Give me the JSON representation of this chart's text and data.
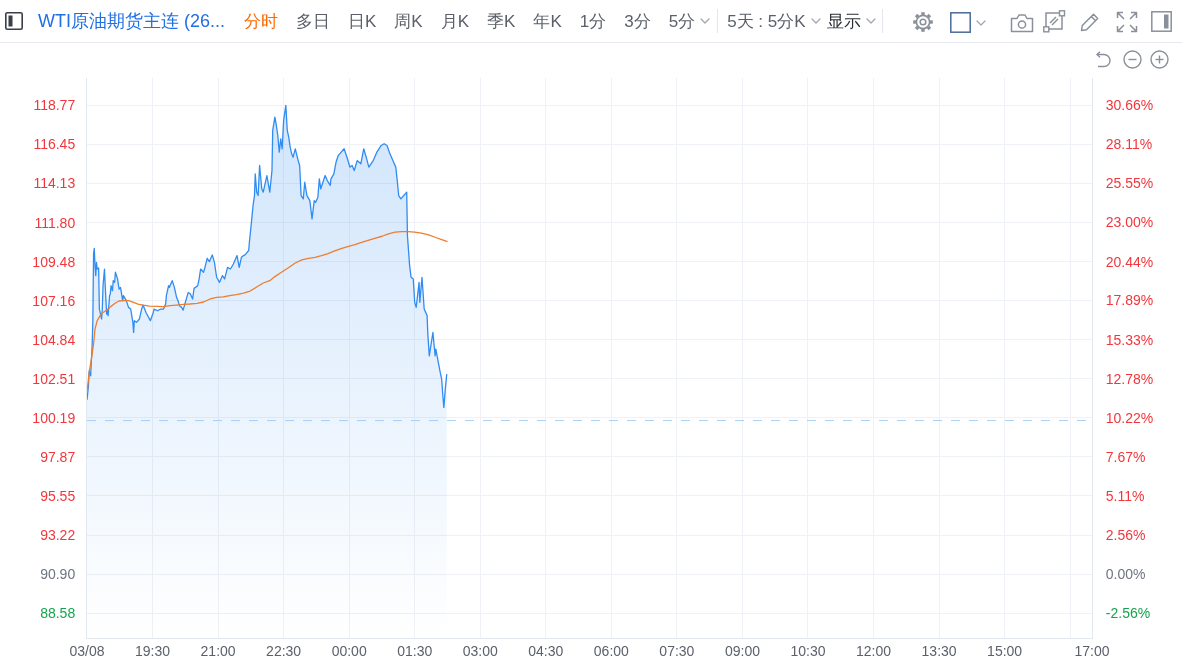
{
  "chart_data": {
    "type": "area",
    "title": "WTI原油期货主连 (26...",
    "annotations": [
      "分时",
      "多日",
      "日K",
      "周K",
      "月K",
      "季K",
      "年K",
      "1分",
      "3分",
      "5分",
      "5天 : 5分K",
      "显示"
    ],
    "xlim": [
      "--03-07T18:00",
      "--03-08T17:00"
    ],
    "xticks": [
      {
        "value": "--03-07T18:00",
        "label": "03/08"
      },
      {
        "value": "--03-07T19:30",
        "label": "19:30"
      },
      {
        "value": "--03-07T21:00",
        "label": "21:00"
      },
      {
        "value": "--03-07T22:30",
        "label": "22:30"
      },
      {
        "value": "--03-08T00:00",
        "label": "00:00"
      },
      {
        "value": "--03-08T01:30",
        "label": "01:30"
      },
      {
        "value": "--03-08T03:00",
        "label": "03:00"
      },
      {
        "value": "--03-08T04:30",
        "label": "04:30"
      },
      {
        "value": "--03-08T06:00",
        "label": "06:00"
      },
      {
        "value": "--03-08T07:30",
        "label": "07:30"
      },
      {
        "value": "--03-08T09:00",
        "label": "09:00"
      },
      {
        "value": "--03-08T10:30",
        "label": "10:30"
      },
      {
        "value": "--03-08T12:00",
        "label": "12:00"
      },
      {
        "value": "--03-08T13:30",
        "label": "13:30"
      },
      {
        "value": "--03-08T15:00",
        "label": "15:00"
      },
      {
        "value": "--03-08T16:30",
        "label": null
      },
      {
        "value": "--03-08T17:00",
        "label": "17:00"
      }
    ],
    "ylim": [
      87.1,
      120.4
    ],
    "yticks": [
      88.58,
      {
        "value": 90.9,
        "label": "90.90"
      },
      93.22,
      95.55,
      97.87,
      100.19,
      102.51,
      104.84,
      107.16,
      109.48,
      {
        "value": 111.8,
        "label": "111.80"
      },
      114.13,
      116.45,
      118.77
    ],
    "y2lim": [
      -4.18,
      32.45
    ],
    "y2ticks": [
      {
        "value": -2.56,
        "label": "-2.56%"
      },
      {
        "value": 0,
        "label": "0.00%"
      },
      {
        "value": 2.56,
        "label": "2.56%"
      },
      {
        "value": 5.11,
        "label": "5.11%"
      },
      {
        "value": 7.67,
        "label": "7.67%"
      },
      {
        "value": 10.22,
        "label": "10.22%"
      },
      {
        "value": 12.78,
        "label": "12.78%"
      },
      {
        "value": 15.33,
        "label": "15.33%"
      },
      {
        "value": 17.89,
        "label": "17.89%"
      },
      {
        "value": 20.44,
        "label": "20.44%"
      },
      {
        "value": 23,
        "label": "23.00%"
      },
      {
        "value": 25.55,
        "label": "25.55%"
      },
      {
        "value": 28.11,
        "label": "28.11%"
      },
      {
        "value": 30.66,
        "label": "30.66%"
      }
    ],
    "grid": true,
    "ref_lines": [
      {
        "axis": "y",
        "value": 100.03,
        "color": "#a9cff7",
        "line_style": "dashed"
      }
    ],
    "series": [
      {
        "color": "#318cf2",
        "x": [
          "--03-07T18:00",
          "--03-07T18:02",
          "--03-07T18:03",
          "--03-07T18:05",
          "--03-07T18:06",
          "--03-07T18:07",
          "--03-07T18:08",
          "--03-07T18:09",
          "--03-07T18:10",
          "--03-07T18:11",
          "--03-07T18:12",
          "--03-07T18:13",
          "--03-07T18:14",
          "--03-07T18:16",
          "--03-07T18:17",
          "--03-07T18:18",
          "--03-07T18:20",
          "--03-07T18:21",
          "--03-07T18:22",
          "--03-07T18:24",
          "--03-07T18:25",
          "--03-07T18:27",
          "--03-07T18:28",
          "--03-07T18:29",
          "--03-07T18:31",
          "--03-07T18:32",
          "--03-07T18:33",
          "--03-07T18:35",
          "--03-07T18:36",
          "--03-07T18:38",
          "--03-07T18:39",
          "--03-07T18:42",
          "--03-07T18:44",
          "--03-07T18:46",
          "--03-07T18:49",
          "--03-07T18:50",
          "--03-07T18:54",
          "--03-07T18:57",
          "--03-07T19:00",
          "--03-07T19:03",
          "--03-07T19:04",
          "--03-07T19:05",
          "--03-07T19:08",
          "--03-07T19:12",
          "--03-07T19:15",
          "--03-07T19:17",
          "--03-07T19:21",
          "--03-07T19:27",
          "--03-07T19:31",
          "--03-07T19:32",
          "--03-07T19:37",
          "--03-07T19:41",
          "--03-07T19:45",
          "--03-07T19:48",
          "--03-07T19:49",
          "--03-07T19:52",
          "--03-07T19:53",
          "--03-07T19:57",
          "--03-07T20:00",
          "--03-07T20:03",
          "--03-07T20:05",
          "--03-07T20:07",
          "--03-07T20:10",
          "--03-07T20:12",
          "--03-07T20:15",
          "--03-07T20:19",
          "--03-07T20:22",
          "--03-07T20:25",
          "--03-07T20:27",
          "--03-07T20:32",
          "--03-07T20:34",
          "--03-07T20:36",
          "--03-07T20:40",
          "--03-07T20:42",
          "--03-07T20:45",
          "--03-07T20:48",
          "--03-07T20:52",
          "--03-07T20:55",
          "--03-07T20:58",
          "--03-07T21:02",
          "--03-07T21:06",
          "--03-07T21:09",
          "--03-07T21:13",
          "--03-07T21:17",
          "--03-07T21:21",
          "--03-07T21:26",
          "--03-07T21:29",
          "--03-07T21:32",
          "--03-07T21:35",
          "--03-07T21:37",
          "--03-07T21:42",
          "--03-07T21:43",
          "--03-07T21:46",
          "--03-07T21:48",
          "--03-07T21:50",
          "--03-07T21:51",
          "--03-07T21:53",
          "--03-07T21:55",
          "--03-07T21:57",
          "--03-07T22:00",
          "--03-07T22:02",
          "--03-07T22:07",
          "--03-07T22:11",
          "--03-07T22:14",
          "--03-07T22:15",
          "--03-07T22:18",
          "--03-07T22:20",
          "--03-07T22:22",
          "--03-07T22:24",
          "--03-07T22:26",
          "--03-07T22:28",
          "--03-07T22:30",
          "--03-07T22:33",
          "--03-07T22:35",
          "--03-07T22:37",
          "--03-07T22:39",
          "--03-07T22:41",
          "--03-07T22:43",
          "--03-07T22:46",
          "--03-07T22:50",
          "--03-07T22:52",
          "--03-07T22:54",
          "--03-07T22:57",
          "--03-07T22:59",
          "--03-07T23:02",
          "--03-07T23:06",
          "--03-07T23:09",
          "--03-07T23:12",
          "--03-07T23:14",
          "--03-07T23:17",
          "--03-07T23:19",
          "--03-07T23:21",
          "--03-07T23:27",
          "--03-07T23:30",
          "--03-07T23:34",
          "--03-07T23:35",
          "--03-07T23:39",
          "--03-07T23:42",
          "--03-07T23:45",
          "--03-07T23:47",
          "--03-07T23:53",
          "--03-07T23:57",
          "--03-08T00:01",
          "--03-08T00:04",
          "--03-08T00:07",
          "--03-08T00:11",
          "--03-08T00:16",
          "--03-08T00:20",
          "--03-08T00:24",
          "--03-08T00:27",
          "--03-08T00:33",
          "--03-08T00:38",
          "--03-08T00:44",
          "--03-08T00:48",
          "--03-08T00:52",
          "--03-08T00:56",
          "--03-08T01:00",
          "--03-08T01:04",
          "--03-08T01:06",
          "--03-08T01:08",
          "--03-08T01:11",
          "--03-08T01:15",
          "--03-08T01:19",
          "--03-08T01:20",
          "--03-08T01:23",
          "--03-08T01:25",
          "--03-08T01:28",
          "--03-08T01:30",
          "--03-08T01:32",
          "--03-08T01:36",
          "--03-08T01:37",
          "--03-08T01:40",
          "--03-08T01:43",
          "--03-08T01:47",
          "--03-08T01:48",
          "--03-08T01:50",
          "--03-08T01:55",
          "--03-08T01:58",
          "--03-08T01:59",
          "--03-08T02:02",
          "--03-08T02:05",
          "--03-08T02:07",
          "--03-08T02:09",
          "--03-08T02:10",
          "--03-08T02:12",
          "--03-08T02:14"
        ],
        "values": [
          101.26,
          102.1,
          102.99,
          102.69,
          103.58,
          104.48,
          105.87,
          109.94,
          110.27,
          109.24,
          108.65,
          109.44,
          109.04,
          109.1,
          106.66,
          106.46,
          106.07,
          106.66,
          108.05,
          109.04,
          108.05,
          106.36,
          106.66,
          106.27,
          107.46,
          107.56,
          108.05,
          107.75,
          108.35,
          108.25,
          108.85,
          108.45,
          107.85,
          107.95,
          107.16,
          107.46,
          107.16,
          106.76,
          106.66,
          105.87,
          105.27,
          105.97,
          105.87,
          106.07,
          106.66,
          106.9,
          106.46,
          105.97,
          106.46,
          106.66,
          106.56,
          106.66,
          106.66,
          106.96,
          107.46,
          108.05,
          107.95,
          108.35,
          107.95,
          107.36,
          107.16,
          106.86,
          106.76,
          106.6,
          107.06,
          107.65,
          107.56,
          107.26,
          107.89,
          108.05,
          108.45,
          109.04,
          108.85,
          109.14,
          109.68,
          109.48,
          109.88,
          109.44,
          108.55,
          108.25,
          108.65,
          108.45,
          109.14,
          109.04,
          109.34,
          109.84,
          109.14,
          109.74,
          109.84,
          109.88,
          110.14,
          110.63,
          111.92,
          112.82,
          113.41,
          114.7,
          113.61,
          113.41,
          115.2,
          113.81,
          113.61,
          114.6,
          113.61,
          114.9,
          117.28,
          118.07,
          117.58,
          116.98,
          115.99,
          116.78,
          116.19,
          117.88,
          118.77,
          117.28,
          116.88,
          116.29,
          115.89,
          115.69,
          116.19,
          115.49,
          115.2,
          113.41,
          113.21,
          114.2,
          113.41,
          113.11,
          112.02,
          113.11,
          113.01,
          113.31,
          114.4,
          113.81,
          114.6,
          114.3,
          114.01,
          114.4,
          114.7,
          115.4,
          115.79,
          115.89,
          116.19,
          115.69,
          115.1,
          115.2,
          114.9,
          115.49,
          115.3,
          116.19,
          115.59,
          115.1,
          115.49,
          115.99,
          116.39,
          116.49,
          116.39,
          115.89,
          115.49,
          115.1,
          114.3,
          113.41,
          113.21,
          113.41,
          113.61,
          111.03,
          109.24,
          108.55,
          108.45,
          107.06,
          106.76,
          108.25,
          107.06,
          108.55,
          106.66,
          106.27,
          105.17,
          103.88,
          105.27,
          103.88,
          104.28,
          103.58,
          102.89,
          102.49,
          101.3,
          100.81,
          101.9,
          102.79
        ]
      },
      {
        "type": "line",
        "color": "#ef7d2c",
        "x": [
          "--03-07T18:00",
          "--03-07T18:03",
          "--03-07T18:06",
          "--03-07T18:09",
          "--03-07T18:11",
          "--03-07T18:14",
          "--03-07T18:18",
          "--03-07T18:22",
          "--03-07T18:28",
          "--03-07T18:33",
          "--03-07T18:39",
          "--03-07T18:44",
          "--03-07T18:50",
          "--03-07T18:57",
          "--03-07T19:04",
          "--03-07T19:10",
          "--03-07T19:17",
          "--03-07T19:26",
          "--03-07T19:36",
          "--03-07T19:45",
          "--03-07T19:54",
          "--03-07T20:03",
          "--03-07T20:12",
          "--03-07T20:21",
          "--03-07T20:31",
          "--03-07T20:40",
          "--03-07T20:49",
          "--03-07T20:58",
          "--03-07T21:07",
          "--03-07T21:16",
          "--03-07T21:25",
          "--03-07T21:35",
          "--03-07T21:44",
          "--03-07T21:53",
          "--03-07T22:02",
          "--03-07T22:11",
          "--03-07T22:18",
          "--03-07T22:27",
          "--03-07T22:36",
          "--03-07T22:46",
          "--03-07T22:55",
          "--03-07T23:04",
          "--03-07T23:13",
          "--03-07T23:22",
          "--03-07T23:31",
          "--03-07T23:40",
          "--03-07T23:50",
          "--03-07T23:59",
          "--03-08T00:08",
          "--03-08T00:17",
          "--03-08T00:26",
          "--03-08T00:35",
          "--03-08T00:45",
          "--03-08T00:54",
          "--03-08T01:03",
          "--03-08T01:12",
          "--03-08T01:21",
          "--03-08T01:30",
          "--03-08T01:39",
          "--03-08T01:49",
          "--03-08T01:58",
          "--03-08T02:07",
          "--03-08T02:15"
        ],
        "values": [
          101.7,
          102.89,
          103.68,
          104.58,
          105.47,
          105.97,
          106.27,
          106.46,
          106.62,
          106.82,
          107.02,
          107.14,
          107.16,
          107.16,
          107.06,
          106.96,
          106.9,
          106.84,
          106.82,
          106.8,
          106.86,
          106.9,
          106.94,
          106.96,
          107.0,
          107.08,
          107.26,
          107.36,
          107.38,
          107.46,
          107.52,
          107.61,
          107.73,
          107.97,
          108.21,
          108.35,
          108.59,
          108.85,
          109.1,
          109.4,
          109.58,
          109.68,
          109.74,
          109.84,
          109.96,
          110.12,
          110.27,
          110.39,
          110.49,
          110.63,
          110.75,
          110.87,
          110.99,
          111.13,
          111.23,
          111.27,
          111.27,
          111.23,
          111.17,
          111.07,
          110.93,
          110.79,
          110.67
        ]
      }
    ]
  }
}
